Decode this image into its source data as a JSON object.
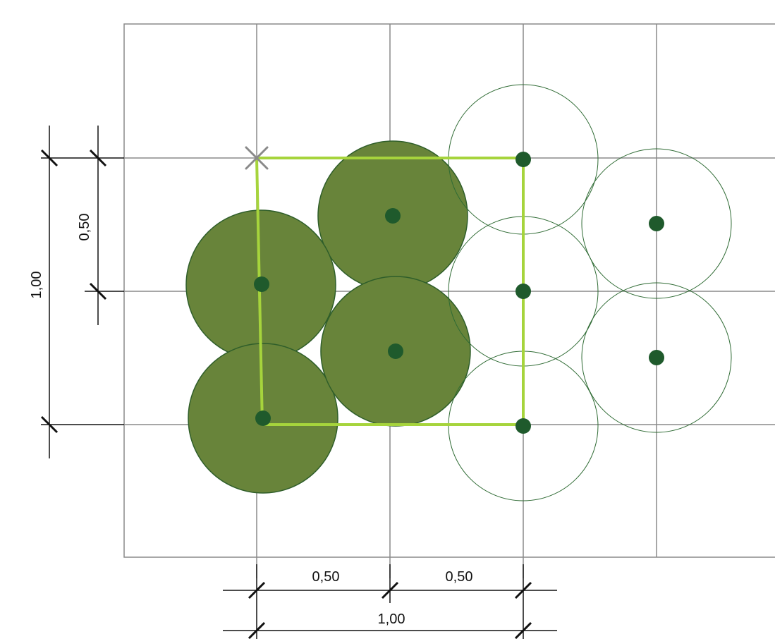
{
  "dimensions": {
    "horizontal": {
      "segment_left": "0,50",
      "segment_right": "0,50",
      "total": "1,00"
    },
    "vertical": {
      "segment": "0,50",
      "total": "1,00"
    }
  },
  "colors": {
    "grid": "#8a8a8a",
    "plant_fill": "#68843a",
    "plant_stroke": "#2f5e2a",
    "plant_center": "#1f5a2c",
    "outline_circle": "#2f6b34",
    "highlight_square": "#a6d43c",
    "origin_marker": "#8a8a8a",
    "dimension_line": "#111111"
  },
  "plants": {
    "filled_count": 4,
    "outline_count": 5
  }
}
